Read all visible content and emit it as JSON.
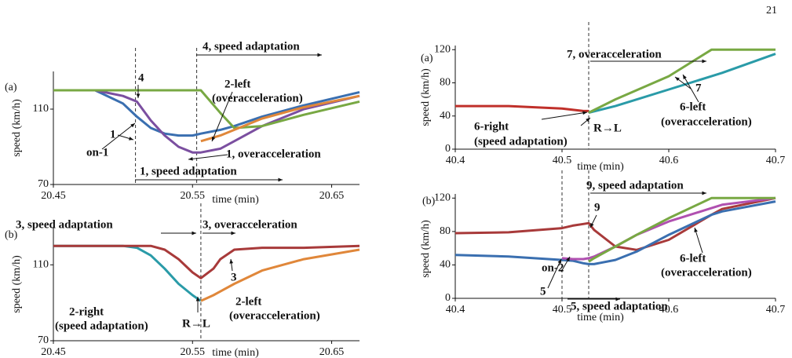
{
  "page_number": "21",
  "chart_data": [
    {
      "type": "line",
      "panel_label": "(a)",
      "y_label": "speed (km/h)",
      "x_label": "time (min)",
      "xlim": [
        20.45,
        20.67
      ],
      "ylim": [
        70,
        130
      ],
      "xticks": [
        20.45,
        20.55,
        20.65
      ],
      "yticks": [
        70,
        110
      ],
      "x": [
        20.45,
        20.48,
        20.5,
        20.51,
        20.52,
        20.53,
        20.54,
        20.55,
        20.556,
        20.57,
        20.58,
        20.6,
        20.63,
        20.67
      ],
      "markers": [
        20.509,
        20.553
      ],
      "series": [
        {
          "color": "#3a6fb0",
          "values": [
            120,
            120,
            113,
            106,
            100,
            97,
            96,
            96,
            97,
            99,
            101,
            106,
            112,
            119
          ]
        },
        {
          "color": "#7b4fa0",
          "values": [
            120,
            120,
            117,
            114,
            104,
            96,
            90,
            87,
            87,
            89,
            93,
            101,
            110,
            117
          ]
        },
        {
          "color": "#78a843",
          "values": [
            120,
            120,
            120,
            120,
            120,
            120,
            120,
            120,
            120,
            108,
            100,
            101,
            107,
            114
          ]
        },
        {
          "color": "#e0873a",
          "values": [
            null,
            null,
            null,
            null,
            null,
            null,
            null,
            null,
            93,
            96,
            99,
            105,
            111,
            117
          ]
        }
      ],
      "annotations": [
        "4, speed adaptation",
        "4",
        "2-left",
        "(overacceleration)",
        "1",
        "on-1",
        "1, overacceleration",
        "1, speed adaptation"
      ]
    },
    {
      "type": "line",
      "panel_label": "(b)",
      "y_label": "speed (km/h)",
      "x_label": "time (min)",
      "xlim": [
        20.45,
        20.67
      ],
      "ylim": [
        70,
        130
      ],
      "xticks": [
        20.45,
        20.55,
        20.65
      ],
      "yticks": [
        70,
        110
      ],
      "x": [
        20.45,
        20.5,
        20.51,
        20.52,
        20.53,
        20.54,
        20.55,
        20.556,
        20.565,
        20.57,
        20.58,
        20.6,
        20.63,
        20.67
      ],
      "markers": [
        20.556
      ],
      "series": [
        {
          "color": "#2a9ba8",
          "values": [
            120,
            120,
            119,
            115,
            108,
            100,
            94,
            91,
            null,
            null,
            null,
            null,
            null,
            null
          ]
        },
        {
          "color": "#a83a3a",
          "values": [
            120,
            120,
            120,
            120,
            118,
            113,
            106,
            103,
            108,
            113,
            118,
            119,
            119,
            120
          ]
        },
        {
          "color": "#e0873a",
          "values": [
            null,
            null,
            null,
            null,
            null,
            null,
            null,
            91,
            94,
            96,
            100,
            107,
            113,
            118
          ]
        }
      ],
      "annotations": [
        "3, speed adaptation",
        "3, overacceleration",
        "3",
        "2-right",
        "(speed adaptation)",
        "2-left",
        "(overacceleration)",
        "R→L"
      ]
    },
    {
      "type": "line",
      "panel_label": "(a)",
      "y_label": "speed (km/h)",
      "x_label": "time (min)",
      "xlim": [
        40.4,
        40.7
      ],
      "ylim": [
        0,
        125
      ],
      "xticks": [
        40.4,
        40.5,
        40.6,
        40.7
      ],
      "yticks": [
        0,
        40,
        80,
        120
      ],
      "x": [
        40.4,
        40.45,
        40.5,
        40.52,
        40.525,
        40.55,
        40.6,
        40.64,
        40.65,
        40.7
      ],
      "markers": [
        40.525
      ],
      "series": [
        {
          "color": "#c0302a",
          "values": [
            52,
            52,
            49,
            46,
            46,
            null,
            null,
            null,
            null,
            null
          ]
        },
        {
          "color": "#2a9ba8",
          "values": [
            null,
            null,
            null,
            null,
            44,
            52,
            72,
            88,
            92,
            115
          ]
        },
        {
          "color": "#78a843",
          "values": [
            null,
            null,
            null,
            null,
            44,
            60,
            88,
            120,
            120,
            120
          ]
        }
      ],
      "annotations": [
        "7, overacceleration",
        "7",
        "6-left",
        "(overacceleration)",
        "6-right",
        "(speed adaptation)",
        "R→L"
      ]
    },
    {
      "type": "line",
      "panel_label": "(b)",
      "y_label": "speed (km/h)",
      "x_label": "time (min)",
      "xlim": [
        40.4,
        40.7
      ],
      "ylim": [
        0,
        125
      ],
      "xticks": [
        40.4,
        40.5,
        40.6,
        40.7
      ],
      "yticks": [
        0,
        40,
        80,
        120
      ],
      "x": [
        40.4,
        40.45,
        40.5,
        40.51,
        40.52,
        40.525,
        40.53,
        40.55,
        40.57,
        40.6,
        40.64,
        40.65,
        40.7
      ],
      "markers": [
        40.5,
        40.525
      ],
      "series": [
        {
          "color": "#a83a3a",
          "values": [
            78,
            79,
            84,
            87,
            89,
            90,
            82,
            62,
            58,
            70,
            100,
            107,
            120
          ]
        },
        {
          "color": "#3a6fb0",
          "values": [
            52,
            50,
            46,
            45,
            42,
            41,
            41,
            46,
            56,
            76,
            100,
            104,
            116
          ]
        },
        {
          "color": "#b050b0",
          "values": [
            null,
            null,
            48,
            47,
            47,
            48,
            50,
            62,
            76,
            92,
            108,
            112,
            120
          ]
        },
        {
          "color": "#78a843",
          "values": [
            null,
            null,
            null,
            null,
            null,
            44,
            48,
            62,
            76,
            96,
            120,
            120,
            120
          ]
        }
      ],
      "annotations": [
        "9, speed adaptation",
        "9",
        "6-left",
        "(overacceleration)",
        "on-2",
        "5",
        "5, speed adaptation"
      ]
    }
  ]
}
